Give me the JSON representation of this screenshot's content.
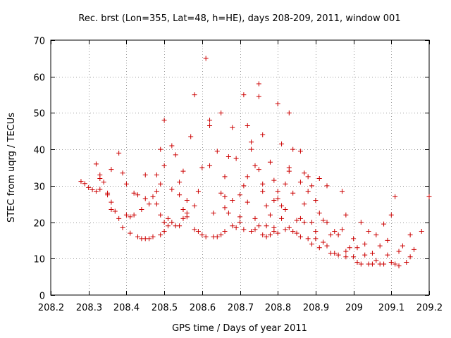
{
  "chart_data": {
    "type": "scatter",
    "title": "Rec. brst (Lon=355, Lat=48, h=HE), days 208-209, 2011, window 001",
    "xlabel": "GPS time / Days of year 2011",
    "ylabel": "STEC from uqrg / TECUs",
    "xlim": [
      208.2,
      209.2
    ],
    "ylim": [
      0,
      70
    ],
    "x_ticks": [
      208.2,
      208.3,
      208.4,
      208.5,
      208.6,
      208.7,
      208.8,
      208.9,
      209.0,
      209.1,
      209.2
    ],
    "x_tick_labels": [
      "208.2",
      "208.3",
      "208.4",
      "208.5",
      "208.6",
      "208.7",
      "208.8",
      "208.9",
      "209",
      "209.1",
      "209.2"
    ],
    "y_ticks": [
      0,
      10,
      20,
      30,
      40,
      50,
      60,
      70
    ],
    "y_tick_labels": [
      "0",
      "10",
      "20",
      "30",
      "40",
      "50",
      "60",
      "70"
    ],
    "grid": true,
    "marker": "+",
    "marker_color": "#cc0000",
    "points": [
      [
        208.28,
        31.2
      ],
      [
        208.29,
        30.6
      ],
      [
        208.3,
        29.5
      ],
      [
        208.31,
        28.9
      ],
      [
        208.32,
        28.5
      ],
      [
        208.32,
        36.0
      ],
      [
        208.33,
        33.0
      ],
      [
        208.33,
        32.0
      ],
      [
        208.33,
        29.0
      ],
      [
        208.34,
        31.0
      ],
      [
        208.35,
        28.0
      ],
      [
        208.35,
        27.5
      ],
      [
        208.36,
        25.5
      ],
      [
        208.36,
        23.5
      ],
      [
        208.36,
        34.5
      ],
      [
        208.37,
        23.0
      ],
      [
        208.38,
        39.0
      ],
      [
        208.38,
        21.0
      ],
      [
        208.39,
        33.5
      ],
      [
        208.39,
        18.5
      ],
      [
        208.4,
        22.0
      ],
      [
        208.4,
        30.5
      ],
      [
        208.41,
        21.5
      ],
      [
        208.41,
        17.0
      ],
      [
        208.42,
        28.0
      ],
      [
        208.42,
        22.0
      ],
      [
        208.43,
        16.0
      ],
      [
        208.43,
        27.5
      ],
      [
        208.44,
        15.5
      ],
      [
        208.44,
        23.5
      ],
      [
        208.45,
        15.5
      ],
      [
        208.45,
        33.0
      ],
      [
        208.45,
        26.5
      ],
      [
        208.46,
        25.0
      ],
      [
        208.46,
        15.5
      ],
      [
        208.47,
        27.0
      ],
      [
        208.47,
        16.0
      ],
      [
        208.48,
        28.5
      ],
      [
        208.48,
        33.0
      ],
      [
        208.48,
        25.0
      ],
      [
        208.49,
        16.5
      ],
      [
        208.49,
        40.0
      ],
      [
        208.49,
        30.5
      ],
      [
        208.49,
        22.0
      ],
      [
        208.5,
        17.5
      ],
      [
        208.5,
        35.5
      ],
      [
        208.5,
        20.0
      ],
      [
        208.5,
        48.0
      ],
      [
        208.51,
        19.0
      ],
      [
        208.51,
        21.0
      ],
      [
        208.52,
        41.0
      ],
      [
        208.52,
        29.0
      ],
      [
        208.52,
        20.0
      ],
      [
        208.53,
        19.0
      ],
      [
        208.53,
        38.5
      ],
      [
        208.54,
        19.0
      ],
      [
        208.54,
        31.0
      ],
      [
        208.54,
        27.5
      ],
      [
        208.55,
        21.0
      ],
      [
        208.55,
        34.0
      ],
      [
        208.55,
        23.5
      ],
      [
        208.56,
        22.5
      ],
      [
        208.56,
        21.5
      ],
      [
        208.56,
        26.0
      ],
      [
        208.57,
        43.5
      ],
      [
        208.58,
        18.0
      ],
      [
        208.58,
        55.0
      ],
      [
        208.58,
        24.5
      ],
      [
        208.59,
        17.5
      ],
      [
        208.59,
        28.5
      ],
      [
        208.6,
        16.5
      ],
      [
        208.6,
        35.0
      ],
      [
        208.61,
        65.0
      ],
      [
        208.61,
        16.0
      ],
      [
        208.62,
        48.0
      ],
      [
        208.62,
        46.5
      ],
      [
        208.62,
        35.5
      ],
      [
        208.63,
        16.0
      ],
      [
        208.63,
        22.5
      ],
      [
        208.64,
        39.5
      ],
      [
        208.64,
        16.0
      ],
      [
        208.65,
        28.0
      ],
      [
        208.65,
        50.0
      ],
      [
        208.65,
        16.5
      ],
      [
        208.66,
        32.5
      ],
      [
        208.66,
        27.0
      ],
      [
        208.66,
        17.5
      ],
      [
        208.66,
        24.0
      ],
      [
        208.67,
        38.0
      ],
      [
        208.67,
        22.5
      ],
      [
        208.68,
        46.0
      ],
      [
        208.68,
        19.0
      ],
      [
        208.68,
        26.0
      ],
      [
        208.69,
        18.5
      ],
      [
        208.69,
        37.5
      ],
      [
        208.7,
        27.5
      ],
      [
        208.7,
        21.5
      ],
      [
        208.7,
        20.0
      ],
      [
        208.71,
        55.0
      ],
      [
        208.71,
        30.0
      ],
      [
        208.71,
        18.0
      ],
      [
        208.72,
        46.5
      ],
      [
        208.72,
        32.5
      ],
      [
        208.72,
        25.5
      ],
      [
        208.73,
        17.5
      ],
      [
        208.73,
        40.0
      ],
      [
        208.73,
        42.0
      ],
      [
        208.74,
        21.0
      ],
      [
        208.74,
        18.0
      ],
      [
        208.74,
        35.5
      ],
      [
        208.75,
        54.5
      ],
      [
        208.75,
        58.0
      ],
      [
        208.75,
        34.5
      ],
      [
        208.75,
        19.0
      ],
      [
        208.76,
        16.5
      ],
      [
        208.76,
        30.5
      ],
      [
        208.76,
        44.0
      ],
      [
        208.76,
        28.5
      ],
      [
        208.77,
        19.0
      ],
      [
        208.77,
        16.0
      ],
      [
        208.77,
        24.5
      ],
      [
        208.78,
        36.5
      ],
      [
        208.78,
        16.5
      ],
      [
        208.78,
        22.0
      ],
      [
        208.79,
        17.5
      ],
      [
        208.79,
        26.0
      ],
      [
        208.79,
        31.5
      ],
      [
        208.79,
        18.5
      ],
      [
        208.8,
        52.5
      ],
      [
        208.8,
        28.5
      ],
      [
        208.8,
        26.5
      ],
      [
        208.8,
        17.0
      ],
      [
        208.81,
        21.0
      ],
      [
        208.81,
        41.5
      ],
      [
        208.81,
        24.5
      ],
      [
        208.82,
        30.5
      ],
      [
        208.82,
        18.0
      ],
      [
        208.82,
        23.5
      ],
      [
        208.83,
        50.0
      ],
      [
        208.83,
        35.0
      ],
      [
        208.83,
        34.0
      ],
      [
        208.83,
        18.5
      ],
      [
        208.84,
        40.0
      ],
      [
        208.84,
        17.5
      ],
      [
        208.84,
        28.0
      ],
      [
        208.85,
        20.5
      ],
      [
        208.85,
        17.0
      ],
      [
        208.86,
        39.5
      ],
      [
        208.86,
        16.0
      ],
      [
        208.86,
        31.0
      ],
      [
        208.86,
        21.0
      ],
      [
        208.87,
        25.0
      ],
      [
        208.87,
        33.5
      ],
      [
        208.87,
        20.0
      ],
      [
        208.88,
        32.5
      ],
      [
        208.88,
        28.5
      ],
      [
        208.88,
        15.5
      ],
      [
        208.89,
        20.0
      ],
      [
        208.89,
        14.0
      ],
      [
        208.89,
        30.0
      ],
      [
        208.9,
        17.5
      ],
      [
        208.9,
        15.5
      ],
      [
        208.9,
        26.0
      ],
      [
        208.91,
        32.0
      ],
      [
        208.91,
        13.0
      ],
      [
        208.91,
        22.5
      ],
      [
        208.92,
        20.5
      ],
      [
        208.92,
        14.5
      ],
      [
        208.93,
        13.5
      ],
      [
        208.93,
        30.0
      ],
      [
        208.93,
        20.0
      ],
      [
        208.94,
        11.5
      ],
      [
        208.94,
        16.5
      ],
      [
        208.95,
        17.5
      ],
      [
        208.95,
        11.5
      ],
      [
        208.96,
        16.5
      ],
      [
        208.96,
        11.0
      ],
      [
        208.97,
        28.5
      ],
      [
        208.97,
        18.0
      ],
      [
        208.98,
        12.0
      ],
      [
        208.98,
        22.0
      ],
      [
        208.98,
        10.5
      ],
      [
        208.99,
        13.0
      ],
      [
        209.0,
        10.5
      ],
      [
        209.0,
        15.5
      ],
      [
        209.01,
        9.0
      ],
      [
        209.01,
        13.0
      ],
      [
        209.02,
        20.0
      ],
      [
        209.02,
        8.5
      ],
      [
        209.03,
        14.0
      ],
      [
        209.03,
        11.0
      ],
      [
        209.04,
        17.5
      ],
      [
        209.04,
        8.5
      ],
      [
        209.05,
        11.5
      ],
      [
        209.05,
        8.5
      ],
      [
        209.06,
        16.5
      ],
      [
        209.06,
        9.5
      ],
      [
        209.07,
        13.5
      ],
      [
        209.07,
        8.5
      ],
      [
        209.08,
        19.5
      ],
      [
        209.08,
        8.5
      ],
      [
        209.09,
        15.0
      ],
      [
        209.09,
        11.0
      ],
      [
        209.1,
        22.0
      ],
      [
        209.1,
        9.0
      ],
      [
        209.11,
        27.0
      ],
      [
        209.11,
        8.5
      ],
      [
        209.12,
        12.0
      ],
      [
        209.12,
        8.0
      ],
      [
        209.13,
        13.5
      ],
      [
        209.14,
        9.0
      ],
      [
        209.15,
        16.5
      ],
      [
        209.15,
        10.5
      ],
      [
        209.16,
        12.5
      ],
      [
        209.18,
        17.5
      ],
      [
        209.2,
        27.0
      ]
    ]
  }
}
